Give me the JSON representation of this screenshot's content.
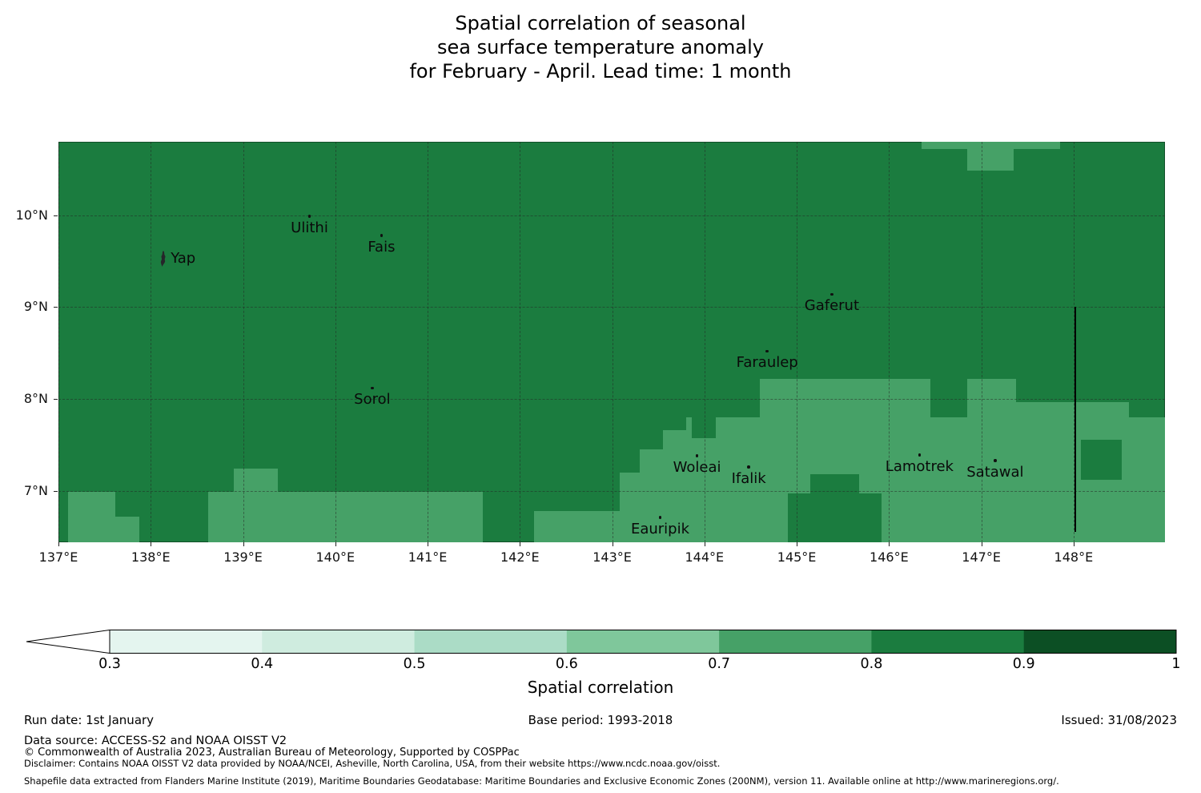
{
  "title": {
    "lines": [
      "Spatial correlation of seasonal",
      "sea surface temperature anomaly",
      "for February - April. Lead time: 1 month"
    ]
  },
  "map": {
    "grid_color": "rgba(35,35,35,0.5)",
    "x_ticks": [
      {
        "lon": 137,
        "label": "137°E"
      },
      {
        "lon": 138,
        "label": "138°E"
      },
      {
        "lon": 139,
        "label": "139°E"
      },
      {
        "lon": 140,
        "label": "140°E"
      },
      {
        "lon": 141,
        "label": "141°E"
      },
      {
        "lon": 142,
        "label": "142°E"
      },
      {
        "lon": 143,
        "label": "143°E"
      },
      {
        "lon": 144,
        "label": "144°E"
      },
      {
        "lon": 145,
        "label": "145°E"
      },
      {
        "lon": 146,
        "label": "146°E"
      },
      {
        "lon": 147,
        "label": "147°E"
      },
      {
        "lon": 148,
        "label": "148°E"
      }
    ],
    "y_ticks": [
      {
        "lat": 7,
        "label": "7°N"
      },
      {
        "lat": 8,
        "label": "8°N"
      },
      {
        "lat": 9,
        "label": "9°N"
      },
      {
        "lat": 10,
        "label": "10°N"
      }
    ]
  },
  "chart_data": {
    "type": "heatmap",
    "title": "Spatial correlation of seasonal sea surface temperature anomaly for February - April. Lead time: 1 month",
    "lon_range": [
      137.0,
      148.99
    ],
    "lat_range": [
      6.44,
      10.8
    ],
    "base_band": "0.8-0.9",
    "bands": {
      "0.7-0.8": "#46a167",
      "0.8-0.9": "#1b7c3f"
    },
    "patches": [
      {
        "band": "0.7-0.8",
        "lon": [
          137.1,
          137.62
        ],
        "lat": [
          6.44,
          6.99
        ]
      },
      {
        "band": "0.7-0.8",
        "lon": [
          137.62,
          137.88
        ],
        "lat": [
          6.44,
          6.72
        ]
      },
      {
        "band": "0.7-0.8",
        "lon": [
          138.62,
          141.6
        ],
        "lat": [
          6.44,
          6.99
        ]
      },
      {
        "band": "0.7-0.8",
        "lon": [
          138.9,
          139.38
        ],
        "lat": [
          6.99,
          7.24
        ]
      },
      {
        "band": "0.7-0.8",
        "lon": [
          142.15,
          143.08
        ],
        "lat": [
          6.44,
          6.78
        ]
      },
      {
        "band": "0.7-0.8",
        "lon": [
          143.08,
          148.99
        ],
        "lat": [
          6.44,
          7.8
        ]
      },
      {
        "band": "0.7-0.8",
        "lon": [
          144.6,
          146.45
        ],
        "lat": [
          7.8,
          8.22
        ]
      },
      {
        "band": "0.7-0.8",
        "lon": [
          146.85,
          147.38
        ],
        "lat": [
          7.8,
          8.22
        ]
      },
      {
        "band": "0.7-0.8",
        "lon": [
          147.38,
          148.6
        ],
        "lat": [
          7.8,
          7.97
        ]
      },
      {
        "band": "0.7-0.8",
        "lon": [
          146.85,
          147.35
        ],
        "lat": [
          10.49,
          10.8
        ]
      },
      {
        "band": "0.7-0.8",
        "lon": [
          146.35,
          147.85
        ],
        "lat": [
          10.72,
          10.8
        ]
      },
      {
        "band": "0.8-0.9",
        "lon": [
          143.08,
          143.3
        ],
        "lat": [
          7.2,
          7.8
        ]
      },
      {
        "band": "0.8-0.9",
        "lon": [
          143.3,
          143.55
        ],
        "lat": [
          7.45,
          7.8
        ]
      },
      {
        "band": "0.8-0.9",
        "lon": [
          143.55,
          143.8
        ],
        "lat": [
          7.66,
          7.8
        ]
      },
      {
        "band": "0.8-0.9",
        "lon": [
          143.86,
          144.12
        ],
        "lat": [
          7.57,
          7.8
        ]
      },
      {
        "band": "0.8-0.9",
        "lon": [
          144.9,
          145.92
        ],
        "lat": [
          6.44,
          6.97
        ]
      },
      {
        "band": "0.8-0.9",
        "lon": [
          145.15,
          145.68
        ],
        "lat": [
          6.97,
          7.18
        ]
      },
      {
        "band": "0.8-0.9",
        "lon": [
          148.08,
          148.52
        ],
        "lat": [
          7.12,
          7.56
        ]
      }
    ],
    "islands": [
      {
        "name": "Yap",
        "lon": 138.13,
        "lat": 9.53,
        "marker": "island",
        "label_side": "right"
      },
      {
        "name": "Ulithi",
        "lon": 139.72,
        "lat": 9.99,
        "marker": "dot"
      },
      {
        "name": "Fais",
        "lon": 140.5,
        "lat": 9.78,
        "marker": "dot"
      },
      {
        "name": "Gaferut",
        "lon": 145.38,
        "lat": 9.14,
        "marker": "dot"
      },
      {
        "name": "Faraulep",
        "lon": 144.68,
        "lat": 8.52,
        "marker": "dot"
      },
      {
        "name": "Sorol",
        "lon": 140.4,
        "lat": 8.12,
        "marker": "dot"
      },
      {
        "name": "Woleai",
        "lon": 143.92,
        "lat": 7.38,
        "marker": "dot"
      },
      {
        "name": "Ifalik",
        "lon": 144.48,
        "lat": 7.26,
        "marker": "dot"
      },
      {
        "name": "Lamotrek",
        "lon": 146.33,
        "lat": 7.39,
        "marker": "dot"
      },
      {
        "name": "Satawal",
        "lon": 147.15,
        "lat": 7.33,
        "marker": "dot"
      },
      {
        "name": "Eauripik",
        "lon": 143.52,
        "lat": 6.71,
        "marker": "dot"
      }
    ],
    "boundary_line": {
      "lon": 148.02,
      "lat_from": 6.55,
      "lat_to": 9.0
    }
  },
  "colorbar": {
    "label": "Spatial correlation",
    "ticks": [
      "0.3",
      "0.4",
      "0.5",
      "0.6",
      "0.7",
      "0.8",
      "0.9",
      "1"
    ],
    "colors": [
      "#e4f5ef",
      "#cfecdf",
      "#abdcc6",
      "#7fc79b",
      "#46a167",
      "#1b7c3f",
      "#0c4f24"
    ],
    "under_color": "#ffffff"
  },
  "footer": {
    "run_date": "Run date: 1st January",
    "base_period": "Base period: 1993-2018",
    "issued": "Issued: 31/08/2023",
    "data_source": "Data source: ACCESS-S2 and NOAA OISST V2",
    "copyright": "© Commonwealth of Australia 2023, Australian Bureau of Meteorology, Supported by COSPPac",
    "disclaimer": "Disclaimer: Contains NOAA OISST V2 data provided by NOAA/NCEI, Asheville, North Carolina, USA, from their website https://www.ncdc.noaa.gov/oisst.",
    "shapefile": "Shapefile data extracted from Flanders Marine Institute (2019), Maritime Boundaries Geodatabase: Maritime Boundaries and Exclusive Economic Zones (200NM), version 11. Available online at http://www.marineregions.org/."
  }
}
